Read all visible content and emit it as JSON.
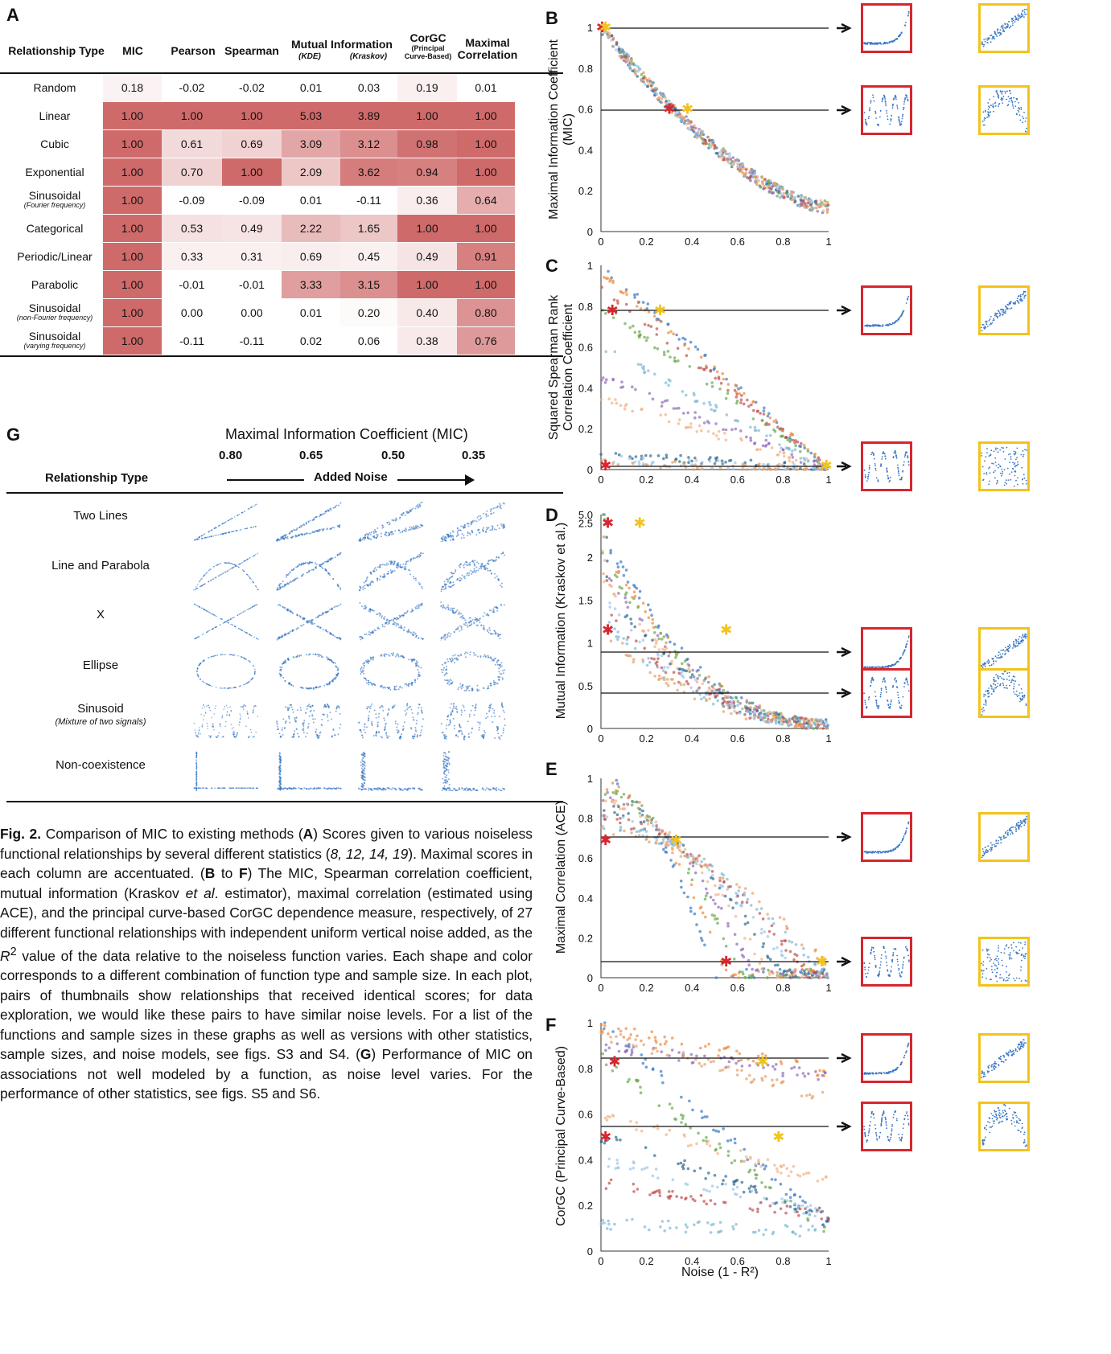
{
  "panelA": {
    "letter": "A",
    "headers": {
      "type": "Relationship Type",
      "mic": "MIC",
      "pearson": "Pearson",
      "spearman": "Spearman",
      "mi": "Mutual Information",
      "kde": "(KDE)",
      "kraskov": "(Kraskov)",
      "corgc": "CorGC",
      "corgc_sub1": "(Principal",
      "corgc_sub2": "Curve-Based)",
      "maxcorr1": "Maximal",
      "maxcorr2": "Correlation"
    },
    "rows": [
      {
        "label": "Random",
        "sub": "",
        "values": [
          "0.18",
          "-0.02",
          "-0.02",
          "0.01",
          "0.03",
          "0.19",
          "0.01"
        ]
      },
      {
        "label": "Linear",
        "sub": "",
        "values": [
          "1.00",
          "1.00",
          "1.00",
          "5.03",
          "3.89",
          "1.00",
          "1.00"
        ]
      },
      {
        "label": "Cubic",
        "sub": "",
        "values": [
          "1.00",
          "0.61",
          "0.69",
          "3.09",
          "3.12",
          "0.98",
          "1.00"
        ]
      },
      {
        "label": "Exponential",
        "sub": "",
        "values": [
          "1.00",
          "0.70",
          "1.00",
          "2.09",
          "3.62",
          "0.94",
          "1.00"
        ]
      },
      {
        "label": "Sinusoidal",
        "sub": "(Fourier frequency)",
        "values": [
          "1.00",
          "-0.09",
          "-0.09",
          "0.01",
          "-0.11",
          "0.36",
          "0.64"
        ]
      },
      {
        "label": "Categorical",
        "sub": "",
        "values": [
          "1.00",
          "0.53",
          "0.49",
          "2.22",
          "1.65",
          "1.00",
          "1.00"
        ]
      },
      {
        "label": "Periodic/Linear",
        "sub": "",
        "values": [
          "1.00",
          "0.33",
          "0.31",
          "0.69",
          "0.45",
          "0.49",
          "0.91"
        ]
      },
      {
        "label": "Parabolic",
        "sub": "",
        "values": [
          "1.00",
          "-0.01",
          "-0.01",
          "3.33",
          "3.15",
          "1.00",
          "1.00"
        ]
      },
      {
        "label": "Sinusoidal",
        "sub": "(non-Fourier frequency)",
        "values": [
          "1.00",
          "0.00",
          "0.00",
          "0.01",
          "0.20",
          "0.40",
          "0.80"
        ]
      },
      {
        "label": "Sinusoidal",
        "sub": "(varying frequency)",
        "values": [
          "1.00",
          "-0.11",
          "-0.11",
          "0.02",
          "0.06",
          "0.38",
          "0.76"
        ]
      }
    ],
    "shading": [
      [
        0.08,
        0,
        0,
        0,
        0,
        0.1,
        0
      ],
      [
        1,
        1,
        1,
        1,
        1,
        1,
        1
      ],
      [
        1,
        0.25,
        0.3,
        0.6,
        0.75,
        0.95,
        1
      ],
      [
        1,
        0.3,
        1,
        0.38,
        0.88,
        0.85,
        1
      ],
      [
        1,
        0,
        0,
        0,
        0,
        0.12,
        0.55
      ],
      [
        1,
        0.2,
        0.18,
        0.45,
        0.38,
        1,
        1
      ],
      [
        1,
        0.1,
        0.1,
        0.12,
        0.1,
        0.18,
        0.85
      ],
      [
        1,
        0,
        0,
        0.65,
        0.75,
        1,
        1
      ],
      [
        1,
        0,
        0,
        0,
        0.03,
        0.15,
        0.72
      ],
      [
        1,
        0,
        0,
        0,
        0,
        0.14,
        0.68
      ]
    ],
    "shade_color": "#cf6a6a"
  },
  "panelG": {
    "letter": "G",
    "title": "Maximal Information Coefficient (MIC)",
    "mic_values": [
      "0.80",
      "0.65",
      "0.50",
      "0.35"
    ],
    "type_header": "Relationship Type",
    "noise_label": "Added Noise",
    "rows": [
      {
        "label": "Two Lines",
        "sub": ""
      },
      {
        "label": "Line and Parabola",
        "sub": ""
      },
      {
        "label": "X",
        "sub": ""
      },
      {
        "label": "Ellipse",
        "sub": ""
      },
      {
        "label": "Sinusoid",
        "sub": "(Mixture of two signals)"
      },
      {
        "label": "Non-coexistence",
        "sub": ""
      }
    ]
  },
  "caption": {
    "p1": "Fig. 2.",
    "p2": " Comparison of MIC to existing methods (",
    "A": "A",
    "p3": ") Scores given to various noiseless functional relationships by several different statistics (",
    "refs": "8, 12, 14, 19",
    "p4": "). Maximal scores in each column are accentuated. (",
    "B": "B",
    "p5": " to ",
    "F": "F",
    "p6": ") The MIC, Spearman correlation coefficient, mutual information (Kraskov ",
    "etal": "et al",
    "p7": ". estimator), maximal correlation (estimated using ACE), and the principal curve-based CorGC dependence measure, respectively, of 27 different functional relationships with independent uniform vertical noise added, as the ",
    "R": "R",
    "p8": " value of the data relative to the noiseless function varies. Each shape and color corresponds to a different combination of function type and sample size. In each plot, pairs of thumbnails show relationships that received identical scores; for data exploration, we would like these pairs to have similar noise levels. For a list of the functions and sample sizes in these graphs as well as versions with other statistics, sample sizes, and noise models, see figs. S3 and S4. (",
    "G": "G",
    "p9": ") Performance of MIC on associations not well modeled by a function, as noise level varies. For the performance of other statistics, see figs. S5 and S6."
  },
  "charts": [
    {
      "letter": "B",
      "ylabel1": "Maximal Information Coefficient",
      "ylabel2": "(MIC)",
      "yticks": [
        "0",
        "0.2",
        "0.4",
        "0.6",
        "0.8",
        "1"
      ],
      "xticks": [
        "0",
        "0.2",
        "0.4",
        "0.6",
        "0.8",
        "1"
      ]
    },
    {
      "letter": "C",
      "ylabel1": "Squared Spearman Rank",
      "ylabel2": "Correlation Coefficient",
      "yticks": [
        "0",
        "0.2",
        "0.4",
        "0.6",
        "0.8",
        "1"
      ],
      "xticks": [
        "0",
        "0.2",
        "0.4",
        "0.6",
        "0.8",
        "1"
      ]
    },
    {
      "letter": "D",
      "ylabel1": "Mutual Information (Kraskov et al.)",
      "ylabel2": "",
      "yticks": [
        "0",
        "0.5",
        "1",
        "1.5",
        "2",
        "2.5",
        "5.0"
      ],
      "xticks": [
        "0",
        "0.2",
        "0.4",
        "0.6",
        "0.8",
        "1"
      ]
    },
    {
      "letter": "E",
      "ylabel1": "Maximal Correlation (ACE)",
      "ylabel2": "",
      "yticks": [
        "0",
        "0.2",
        "0.4",
        "0.6",
        "0.8",
        "1"
      ],
      "xticks": [
        "0",
        "0.2",
        "0.4",
        "0.6",
        "0.8",
        "1"
      ]
    },
    {
      "letter": "F",
      "ylabel1": "CorGC (Principal Curve-Based)",
      "ylabel2": "",
      "yticks": [
        "0",
        "0.2",
        "0.4",
        "0.6",
        "0.8",
        "1"
      ],
      "xticks": [
        "0",
        "0.2",
        "0.4",
        "0.6",
        "0.8",
        "1"
      ],
      "xlabel": "Noise (1 - R²)"
    }
  ],
  "colors": {
    "red_box": "#d7262e",
    "yellow_box": "#f2c31d",
    "thumb_blue": "#3b78c4"
  }
}
